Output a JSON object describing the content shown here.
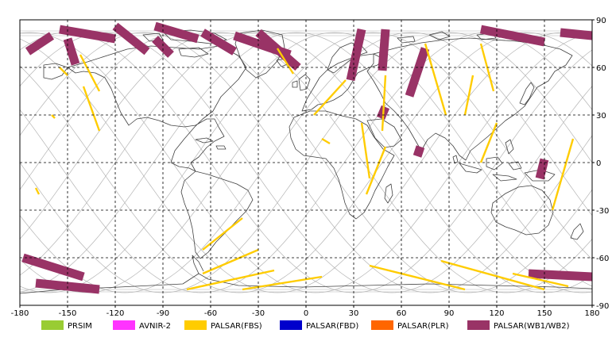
{
  "map": {
    "xlim": [
      -180,
      180
    ],
    "ylim": [
      -90,
      90
    ],
    "lon_ticks": [
      -180,
      -150,
      -120,
      -90,
      -60,
      -30,
      0,
      30,
      60,
      90,
      120,
      150,
      180
    ],
    "lat_ticks": [
      90,
      60,
      30,
      0,
      -30,
      -60,
      -90
    ],
    "lon_labels": [
      "-180",
      "-150",
      "-120",
      "-90",
      "-60",
      "-30",
      "0",
      "30",
      "60",
      "90",
      "120",
      "150",
      "180"
    ],
    "lat_labels": [
      "90",
      "60",
      "30",
      "0",
      "-30",
      "-60",
      "-90"
    ],
    "grid": "dashed",
    "colors": {
      "coastline": "#404040",
      "orbit_track": "#b4b4b4",
      "grid": "#000000"
    }
  },
  "legend": {
    "placement": "bottom",
    "items": [
      {
        "label": "PRSIM",
        "color": "#99cc33"
      },
      {
        "label": "AVNIR-2",
        "color": "#ff33ff"
      },
      {
        "label": "PALSAR(FBS)",
        "color": "#ffcc00"
      },
      {
        "label": "PALSAR(FBD)",
        "color": "#0000cc"
      },
      {
        "label": "PALSAR(PLR)",
        "color": "#ff6600"
      },
      {
        "label": "PALSAR(WB1/WB2)",
        "color": "#993366"
      }
    ]
  },
  "coverage": {
    "wb_color": "#993366",
    "fbs_color": "#ffcc00",
    "wb_strips": [
      {
        "from": [
          -155,
          84
        ],
        "to": [
          -120,
          78
        ]
      },
      {
        "from": [
          -120,
          86
        ],
        "to": [
          -100,
          70
        ]
      },
      {
        "from": [
          -95,
          86
        ],
        "to": [
          -68,
          78
        ]
      },
      {
        "from": [
          -150,
          78
        ],
        "to": [
          -145,
          62
        ]
      },
      {
        "from": [
          -160,
          80
        ],
        "to": [
          -175,
          70
        ]
      },
      {
        "from": [
          -95,
          78
        ],
        "to": [
          -85,
          68
        ]
      },
      {
        "from": [
          -65,
          82
        ],
        "to": [
          -45,
          70
        ]
      },
      {
        "from": [
          -45,
          80
        ],
        "to": [
          -10,
          68
        ]
      },
      {
        "from": [
          -30,
          82
        ],
        "to": [
          -5,
          60
        ]
      },
      {
        "from": [
          35,
          84
        ],
        "to": [
          28,
          52
        ]
      },
      {
        "from": [
          50,
          84
        ],
        "to": [
          48,
          58
        ]
      },
      {
        "from": [
          75,
          72
        ],
        "to": [
          65,
          42
        ]
      },
      {
        "from": [
          110,
          84
        ],
        "to": [
          150,
          76
        ]
      },
      {
        "from": [
          160,
          82
        ],
        "to": [
          180,
          80
        ]
      },
      {
        "from": [
          50,
          35
        ],
        "to": [
          47,
          28
        ]
      },
      {
        "from": [
          72,
          10
        ],
        "to": [
          70,
          4
        ]
      },
      {
        "from": [
          150,
          2
        ],
        "to": [
          147,
          -10
        ]
      },
      {
        "from": [
          -178,
          -60
        ],
        "to": [
          -140,
          -72
        ]
      },
      {
        "from": [
          -170,
          -76
        ],
        "to": [
          -130,
          -80
        ]
      },
      {
        "from": [
          140,
          -70
        ],
        "to": [
          180,
          -72
        ]
      }
    ],
    "fbs_strips": [
      {
        "from": [
          -142,
          68
        ],
        "to": [
          -130,
          45
        ]
      },
      {
        "from": [
          -140,
          48
        ],
        "to": [
          -130,
          20
        ]
      },
      {
        "from": [
          -155,
          60
        ],
        "to": [
          -150,
          55
        ]
      },
      {
        "from": [
          -18,
          72
        ],
        "to": [
          -8,
          56
        ]
      },
      {
        "from": [
          25,
          52
        ],
        "to": [
          5,
          30
        ]
      },
      {
        "from": [
          35,
          25
        ],
        "to": [
          40,
          -10
        ]
      },
      {
        "from": [
          50,
          55
        ],
        "to": [
          48,
          20
        ]
      },
      {
        "from": [
          50,
          10
        ],
        "to": [
          38,
          -20
        ]
      },
      {
        "from": [
          75,
          75
        ],
        "to": [
          88,
          30
        ]
      },
      {
        "from": [
          110,
          75
        ],
        "to": [
          118,
          45
        ]
      },
      {
        "from": [
          120,
          25
        ],
        "to": [
          110,
          0
        ]
      },
      {
        "from": [
          105,
          55
        ],
        "to": [
          100,
          30
        ]
      },
      {
        "from": [
          168,
          15
        ],
        "to": [
          155,
          -30
        ]
      },
      {
        "from": [
          -40,
          -35
        ],
        "to": [
          -65,
          -55
        ]
      },
      {
        "from": [
          -30,
          -55
        ],
        "to": [
          -65,
          -70
        ]
      },
      {
        "from": [
          -20,
          -68
        ],
        "to": [
          -75,
          -80
        ]
      },
      {
        "from": [
          10,
          -72
        ],
        "to": [
          -40,
          -80
        ]
      },
      {
        "from": [
          40,
          -65
        ],
        "to": [
          100,
          -80
        ]
      },
      {
        "from": [
          85,
          -62
        ],
        "to": [
          150,
          -80
        ]
      },
      {
        "from": [
          130,
          -70
        ],
        "to": [
          165,
          -78
        ]
      },
      {
        "from": [
          -170,
          -16
        ],
        "to": [
          -168,
          -20
        ]
      },
      {
        "from": [
          -160,
          30
        ],
        "to": [
          -158,
          28
        ]
      },
      {
        "from": [
          10,
          15
        ],
        "to": [
          15,
          12
        ]
      }
    ]
  }
}
